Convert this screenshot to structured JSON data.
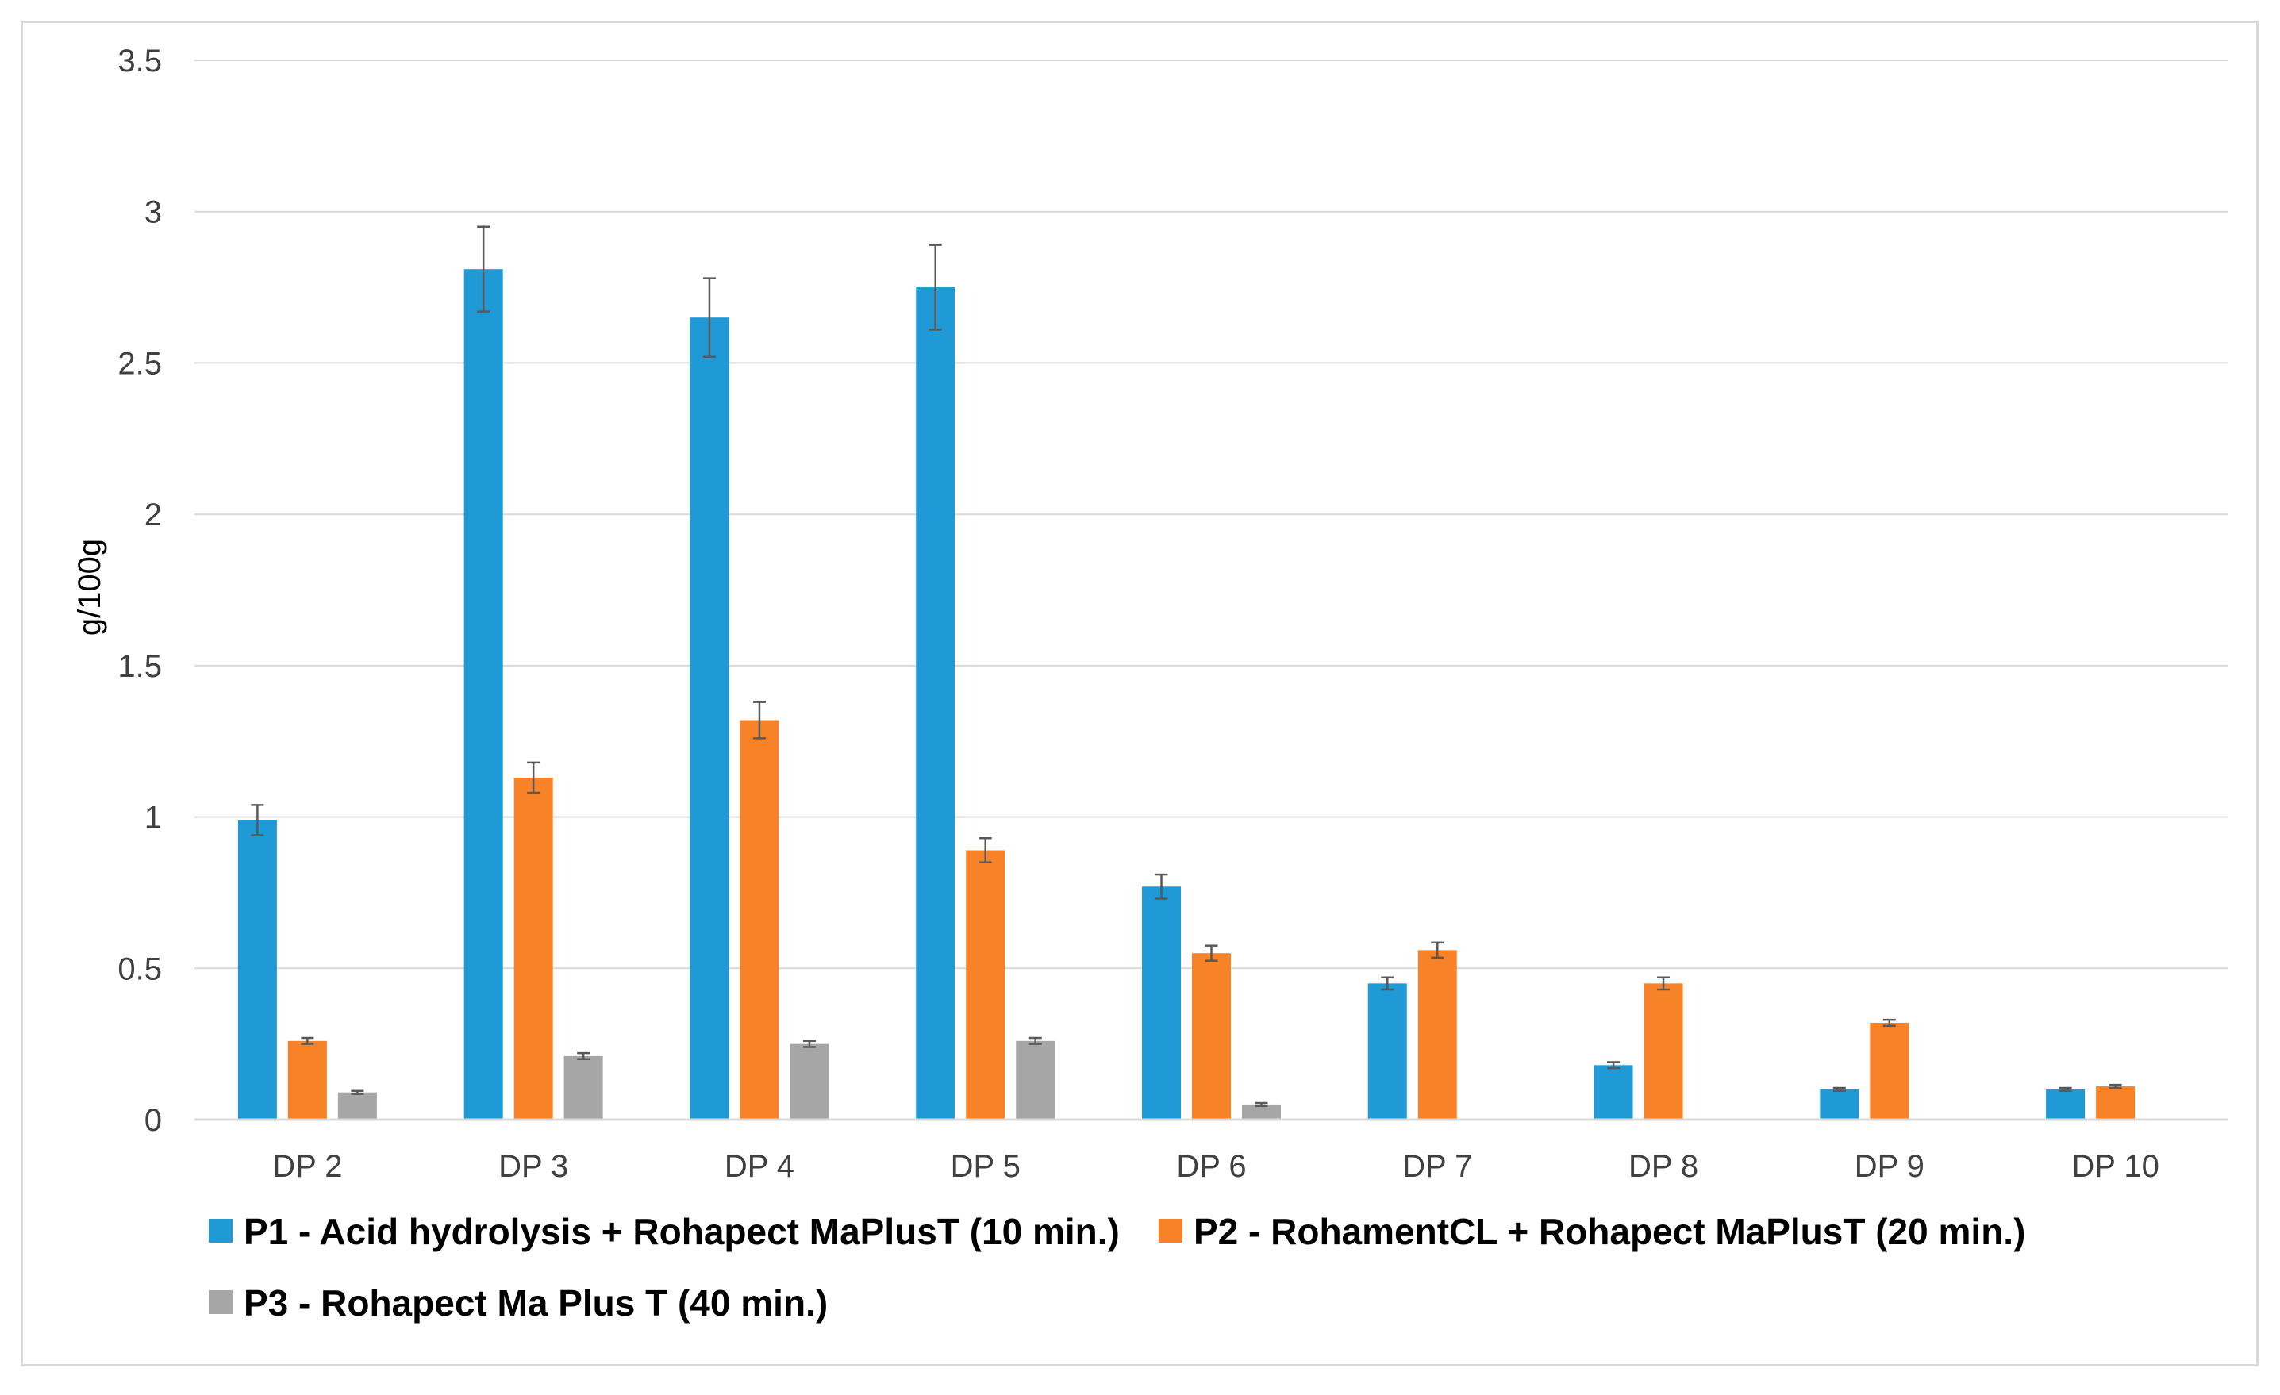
{
  "chart_data": {
    "type": "bar",
    "title": "",
    "xlabel": "",
    "ylabel": "g/100g",
    "ylim": [
      0,
      3.5
    ],
    "yticks": [
      "0",
      "0.5",
      "1",
      "1.5",
      "2",
      "2.5",
      "3",
      "3.5"
    ],
    "grid": true,
    "legend_position": "bottom",
    "categories": [
      "DP 2",
      "DP 3",
      "DP 4",
      "DP 5",
      "DP 6",
      "DP 7",
      "DP 8",
      "DP 9",
      "DP 10"
    ],
    "series": [
      {
        "name": "P1 - Acid hydrolysis + Rohapect MaPlusT (10 min.)",
        "color": "#1f9ad6",
        "values": [
          0.99,
          2.81,
          2.65,
          2.75,
          0.77,
          0.45,
          0.18,
          0.1,
          0.1
        ],
        "errors": [
          0.05,
          0.14,
          0.13,
          0.14,
          0.04,
          0.02,
          0.01,
          0.005,
          0.005
        ]
      },
      {
        "name": "P2 - RohamentCL + Rohapect MaPlusT (20 min.)",
        "color": "#f88228",
        "values": [
          0.26,
          1.13,
          1.32,
          0.89,
          0.55,
          0.56,
          0.45,
          0.32,
          0.11
        ],
        "errors": [
          0.01,
          0.05,
          0.06,
          0.04,
          0.025,
          0.025,
          0.02,
          0.01,
          0.005
        ]
      },
      {
        "name": "P3 - Rohapect Ma Plus T (40 min.)",
        "color": "#a6a6a6",
        "values": [
          0.09,
          0.21,
          0.25,
          0.26,
          0.05,
          0,
          0,
          0,
          0
        ],
        "errors": [
          0.005,
          0.01,
          0.01,
          0.01,
          0.005,
          0,
          0,
          0,
          0
        ]
      }
    ]
  }
}
